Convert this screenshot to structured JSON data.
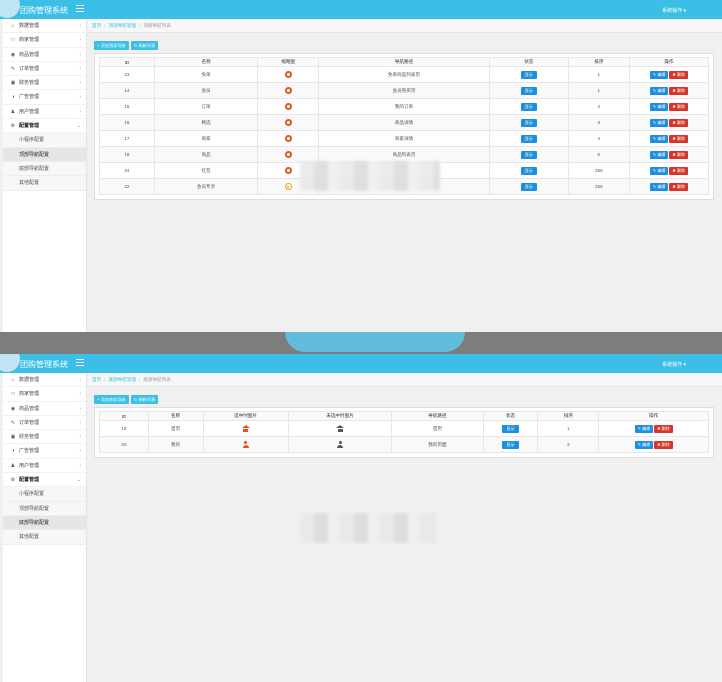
{
  "app_title": "团购管理系统",
  "sys_ops": "系统操作",
  "sidebar": {
    "items": [
      {
        "label": "数据管理",
        "icon": "home-icon",
        "glyph": "⌂"
      },
      {
        "label": "商家管理",
        "icon": "file-icon",
        "glyph": "□"
      },
      {
        "label": "商品管理",
        "icon": "eye-icon",
        "glyph": "◉"
      },
      {
        "label": "订单管理",
        "icon": "edit-icon",
        "glyph": "✎"
      },
      {
        "label": "财务管理",
        "icon": "book-icon",
        "glyph": "▣"
      },
      {
        "label": "广告管理",
        "icon": "pie-icon",
        "glyph": "◑"
      },
      {
        "label": "用户管理",
        "icon": "user-icon",
        "glyph": "♟"
      },
      {
        "label": "配置管理",
        "icon": "gear-icon",
        "glyph": "⚙"
      }
    ],
    "sub_items": [
      "小程序配置",
      "顶部导航配置",
      "底部导航配置",
      "其他配置"
    ]
  },
  "top": {
    "breadcrumb": {
      "home": "首页",
      "parent": "顶部导航管理",
      "current": "顶部导航列表"
    },
    "add_button": "+ 添加顶部导航",
    "refresh_button": "刷新列表",
    "headers": [
      "ID",
      "名称",
      "缩略图",
      "导航路径",
      "状态",
      "排序",
      "操作"
    ],
    "rows": [
      {
        "id": "23",
        "name": "免单",
        "path": "免单商品列表页",
        "status": "显示",
        "sort": "1",
        "icon": "solid"
      },
      {
        "id": "14",
        "name": "会员",
        "path": "会员购买页",
        "status": "显示",
        "sort": "1",
        "icon": "solid"
      },
      {
        "id": "15",
        "name": "订单",
        "path": "我的订单",
        "status": "显示",
        "sort": "2",
        "icon": "solid"
      },
      {
        "id": "16",
        "name": "精选",
        "path": "商品详情",
        "status": "显示",
        "sort": "3",
        "icon": "solid"
      },
      {
        "id": "17",
        "name": "商家",
        "path": "商家详情",
        "status": "显示",
        "sort": "4",
        "icon": "solid"
      },
      {
        "id": "18",
        "name": "商品",
        "path": "商品列表页",
        "status": "显示",
        "sort": "5",
        "icon": "solid"
      },
      {
        "id": "24",
        "name": "红包",
        "path": "",
        "status": "显示",
        "sort": "255",
        "icon": "solid"
      },
      {
        "id": "22",
        "name": "会员专享",
        "path": "",
        "status": "显示",
        "sort": "255",
        "icon": "ring"
      }
    ],
    "edit_label": "编辑",
    "delete_label": "删除"
  },
  "bottom": {
    "breadcrumb": {
      "home": "首页",
      "parent": "底部导航管理",
      "current": "底部导航列表"
    },
    "add_button": "+ 添加底部导航",
    "refresh_button": "刷新列表",
    "headers": [
      "ID",
      "名称",
      "选中时图片",
      "未选中时图片",
      "导航路径",
      "状态",
      "排序",
      "操作"
    ],
    "rows": [
      {
        "id": "19",
        "name": "首页",
        "path": "首页",
        "status": "显示",
        "sort": "1",
        "icon": "house"
      },
      {
        "id": "20",
        "name": "我的",
        "path": "我的页面",
        "status": "显示",
        "sort": "2",
        "icon": "person"
      }
    ],
    "edit_label": "编辑",
    "delete_label": "删除"
  },
  "colors": {
    "accent": "#3bbfe6",
    "primary_button": "#1e8fdc",
    "danger_button": "#d9342b",
    "icon_orange": "#e8511e"
  }
}
